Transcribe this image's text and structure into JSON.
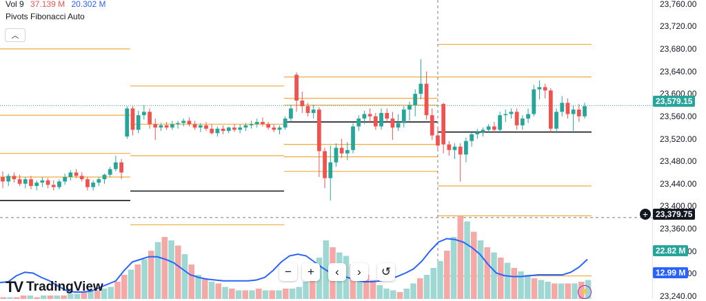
{
  "legend": {
    "vol_label": "Vol 9",
    "vol_value_1": "37.139 M",
    "vol_value_2": "20.302 M",
    "pivots_label": "Pivots Fibonacci Auto"
  },
  "collapse_icon": "chevron-up-icon",
  "price_axis": {
    "ticks": [
      "23,760.00",
      "23,720.00",
      "23,680.00",
      "23,640.00",
      "23,600.00",
      "23,560.00",
      "23,520.00",
      "23,480.00",
      "23,440.00",
      "23,400.00",
      "23,360.00",
      "23,320.00",
      "23,280.00",
      "23,240.00"
    ],
    "last_price_label": "23,579.15",
    "crosshair_price_label": "23,379.75",
    "volume_label": "22.82 M",
    "volume_ma_label": "12.99 M"
  },
  "nav_buttons": [
    {
      "symbol": "−",
      "icon": "zoom-out-icon"
    },
    {
      "symbol": "+",
      "icon": "zoom-in-icon"
    },
    {
      "symbol": "‹",
      "icon": "scroll-left-icon"
    },
    {
      "symbol": "›",
      "icon": "scroll-right-icon"
    },
    {
      "symbol": "↺",
      "icon": "reset-icon"
    }
  ],
  "branding": {
    "logo_mark": "TV",
    "logo_text": "TradingView"
  },
  "colors": {
    "up": "#26a69a",
    "down": "#ef5350",
    "pivot": "#f2a93b",
    "pivot_center": "#131722",
    "vol_ma": "#2962ff",
    "vol_up": "#9fd8d2",
    "vol_down": "#f5a9a7"
  },
  "chart_data": {
    "type": "candlestick",
    "ylim": [
      23235,
      23767
    ],
    "last_price": 23579.15,
    "crosshair_price": 23379.75,
    "grid": false,
    "candles": [
      [
        23452,
        23462,
        23432,
        23444
      ],
      [
        23444,
        23458,
        23436,
        23454
      ],
      [
        23454,
        23460,
        23442,
        23448
      ],
      [
        23448,
        23456,
        23436,
        23440
      ],
      [
        23440,
        23452,
        23432,
        23448
      ],
      [
        23448,
        23454,
        23430,
        23436
      ],
      [
        23436,
        23446,
        23428,
        23442
      ],
      [
        23442,
        23452,
        23434,
        23446
      ],
      [
        23446,
        23450,
        23432,
        23438
      ],
      [
        23438,
        23446,
        23428,
        23434
      ],
      [
        23434,
        23448,
        23430,
        23444
      ],
      [
        23444,
        23458,
        23438,
        23452
      ],
      [
        23452,
        23464,
        23446,
        23460
      ],
      [
        23460,
        23466,
        23450,
        23454
      ],
      [
        23454,
        23460,
        23444,
        23448
      ],
      [
        23448,
        23452,
        23428,
        23434
      ],
      [
        23434,
        23446,
        23428,
        23442
      ],
      [
        23442,
        23452,
        23436,
        23448
      ],
      [
        23448,
        23458,
        23440,
        23456
      ],
      [
        23456,
        23470,
        23452,
        23466
      ],
      [
        23466,
        23490,
        23462,
        23478
      ],
      [
        23478,
        23484,
        23448,
        23460
      ],
      [
        23524,
        23578,
        23520,
        23574
      ],
      [
        23574,
        23578,
        23526,
        23536
      ],
      [
        23536,
        23570,
        23530,
        23562
      ],
      [
        23562,
        23580,
        23554,
        23568
      ],
      [
        23568,
        23574,
        23538,
        23546
      ],
      [
        23546,
        23556,
        23518,
        23540
      ],
      [
        23540,
        23548,
        23534,
        23544
      ],
      [
        23544,
        23550,
        23536,
        23540
      ],
      [
        23540,
        23552,
        23536,
        23546
      ],
      [
        23546,
        23552,
        23538,
        23548
      ],
      [
        23548,
        23556,
        23542,
        23552
      ],
      [
        23552,
        23558,
        23542,
        23546
      ],
      [
        23546,
        23552,
        23536,
        23540
      ],
      [
        23540,
        23548,
        23532,
        23544
      ],
      [
        23544,
        23550,
        23534,
        23538
      ],
      [
        23538,
        23546,
        23528,
        23530
      ],
      [
        23530,
        23542,
        23524,
        23538
      ],
      [
        23538,
        23544,
        23528,
        23534
      ],
      [
        23534,
        23542,
        23530,
        23540
      ],
      [
        23540,
        23546,
        23532,
        23536
      ],
      [
        23536,
        23546,
        23530,
        23540
      ],
      [
        23540,
        23548,
        23534,
        23544
      ],
      [
        23544,
        23552,
        23538,
        23546
      ],
      [
        23546,
        23556,
        23540,
        23550
      ],
      [
        23550,
        23558,
        23542,
        23546
      ],
      [
        23546,
        23550,
        23536,
        23540
      ],
      [
        23540,
        23546,
        23532,
        23536
      ],
      [
        23536,
        23544,
        23528,
        23540
      ],
      [
        23540,
        23560,
        23536,
        23556
      ],
      [
        23556,
        23580,
        23550,
        23574
      ],
      [
        23634,
        23638,
        23568,
        23588
      ],
      [
        23588,
        23604,
        23566,
        23578
      ],
      [
        23578,
        23584,
        23560,
        23566
      ],
      [
        23566,
        23580,
        23556,
        23572
      ],
      [
        23572,
        23576,
        23452,
        23498
      ],
      [
        23498,
        23504,
        23432,
        23450
      ],
      [
        23450,
        23508,
        23410,
        23478
      ],
      [
        23478,
        23512,
        23470,
        23504
      ],
      [
        23504,
        23520,
        23486,
        23494
      ],
      [
        23494,
        23514,
        23482,
        23500
      ],
      [
        23500,
        23548,
        23494,
        23542
      ],
      [
        23542,
        23562,
        23534,
        23556
      ],
      [
        23556,
        23570,
        23546,
        23564
      ],
      [
        23564,
        23574,
        23548,
        23560
      ],
      [
        23560,
        23566,
        23536,
        23542
      ],
      [
        23542,
        23574,
        23536,
        23566
      ],
      [
        23566,
        23574,
        23550,
        23556
      ],
      [
        23556,
        23568,
        23518,
        23540
      ],
      [
        23540,
        23564,
        23534,
        23548
      ],
      [
        23548,
        23578,
        23540,
        23572
      ],
      [
        23572,
        23586,
        23552,
        23580
      ],
      [
        23580,
        23608,
        23560,
        23600
      ],
      [
        23600,
        23662,
        23590,
        23618
      ],
      [
        23618,
        23640,
        23554,
        23562
      ],
      [
        23562,
        23574,
        23518,
        23526
      ],
      [
        23526,
        23542,
        23502,
        23508
      ],
      [
        23582,
        23584,
        23494,
        23510
      ],
      [
        23510,
        23516,
        23490,
        23500
      ],
      [
        23500,
        23512,
        23484,
        23506
      ],
      [
        23506,
        23512,
        23444,
        23492
      ],
      [
        23492,
        23522,
        23478,
        23516
      ],
      [
        23516,
        23532,
        23506,
        23528
      ],
      [
        23528,
        23538,
        23520,
        23532
      ],
      [
        23532,
        23540,
        23524,
        23536
      ],
      [
        23536,
        23546,
        23530,
        23542
      ],
      [
        23542,
        23550,
        23530,
        23536
      ],
      [
        23536,
        23568,
        23530,
        23562
      ],
      [
        23562,
        23572,
        23550,
        23564
      ],
      [
        23564,
        23574,
        23556,
        23568
      ],
      [
        23568,
        23574,
        23536,
        23544
      ],
      [
        23544,
        23562,
        23536,
        23556
      ],
      [
        23556,
        23574,
        23548,
        23564
      ],
      [
        23564,
        23616,
        23560,
        23608
      ],
      [
        23608,
        23624,
        23590,
        23612
      ],
      [
        23612,
        23618,
        23592,
        23606
      ],
      [
        23606,
        23610,
        23532,
        23538
      ],
      [
        23538,
        23574,
        23530,
        23568
      ],
      [
        23568,
        23596,
        23560,
        23584
      ],
      [
        23584,
        23592,
        23556,
        23564
      ],
      [
        23564,
        23580,
        23534,
        23572
      ],
      [
        23572,
        23582,
        23550,
        23560
      ],
      [
        23560,
        23584,
        23556,
        23578
      ]
    ],
    "volume_bars": [
      [
        0,
        1
      ],
      [
        1,
        1
      ],
      [
        0,
        1
      ],
      [
        0,
        2
      ],
      [
        1,
        2
      ],
      [
        0,
        1
      ],
      [
        1,
        2
      ],
      [
        0,
        2
      ],
      [
        1,
        2
      ],
      [
        0,
        2
      ],
      [
        1,
        3
      ],
      [
        1,
        3
      ],
      [
        0,
        4
      ],
      [
        1,
        5
      ],
      [
        0,
        5
      ],
      [
        1,
        6
      ],
      [
        1,
        7
      ],
      [
        0,
        10
      ],
      [
        0,
        14
      ],
      [
        1,
        17
      ],
      [
        0,
        20
      ],
      [
        1,
        23
      ],
      [
        0,
        28
      ],
      [
        1,
        33
      ],
      [
        0,
        36
      ],
      [
        1,
        34
      ],
      [
        0,
        31
      ],
      [
        1,
        26
      ],
      [
        0,
        20
      ],
      [
        1,
        14
      ],
      [
        0,
        12
      ],
      [
        1,
        10
      ],
      [
        0,
        9
      ],
      [
        1,
        7
      ],
      [
        0,
        6
      ],
      [
        1,
        5
      ],
      [
        0,
        5
      ],
      [
        1,
        5
      ],
      [
        0,
        6
      ],
      [
        1,
        5
      ],
      [
        0,
        5
      ],
      [
        1,
        5
      ],
      [
        0,
        6
      ],
      [
        1,
        6
      ],
      [
        1,
        7
      ],
      [
        1,
        10
      ],
      [
        0,
        14
      ],
      [
        1,
        24
      ],
      [
        1,
        34
      ],
      [
        0,
        30
      ],
      [
        1,
        27
      ],
      [
        1,
        25
      ],
      [
        0,
        20
      ],
      [
        1,
        16
      ],
      [
        0,
        14
      ],
      [
        0,
        11
      ],
      [
        1,
        8
      ],
      [
        1,
        6
      ],
      [
        1,
        5
      ],
      [
        0,
        4
      ],
      [
        1,
        6
      ],
      [
        1,
        9
      ],
      [
        0,
        12
      ],
      [
        1,
        14
      ],
      [
        1,
        18
      ],
      [
        1,
        22
      ],
      [
        0,
        28
      ],
      [
        1,
        36
      ],
      [
        0,
        48
      ],
      [
        1,
        45
      ],
      [
        0,
        39
      ],
      [
        1,
        34
      ],
      [
        0,
        30
      ],
      [
        1,
        27
      ],
      [
        0,
        24
      ],
      [
        1,
        21
      ],
      [
        0,
        18
      ],
      [
        1,
        16
      ],
      [
        1,
        14
      ],
      [
        0,
        12
      ],
      [
        1,
        11
      ],
      [
        1,
        10
      ],
      [
        0,
        9
      ],
      [
        1,
        9
      ],
      [
        0,
        9
      ],
      [
        1,
        9
      ],
      [
        0,
        10
      ],
      [
        1,
        11
      ]
    ],
    "volume_ma": [
      [
        0,
        19
      ],
      [
        12,
        20
      ],
      [
        24,
        27
      ],
      [
        36,
        31
      ],
      [
        48,
        30
      ],
      [
        60,
        25
      ],
      [
        72,
        21
      ],
      [
        84,
        15
      ],
      [
        96,
        10
      ],
      [
        108,
        8
      ],
      [
        120,
        8
      ],
      [
        132,
        9
      ],
      [
        144,
        13
      ],
      [
        156,
        17
      ],
      [
        168,
        21
      ],
      [
        180,
        33
      ],
      [
        192,
        43
      ],
      [
        204,
        46
      ],
      [
        216,
        49
      ],
      [
        228,
        49
      ],
      [
        240,
        46
      ],
      [
        252,
        42
      ],
      [
        264,
        35
      ],
      [
        276,
        28
      ],
      [
        288,
        25
      ],
      [
        300,
        23
      ],
      [
        312,
        22
      ],
      [
        324,
        21
      ],
      [
        336,
        21
      ],
      [
        348,
        21
      ],
      [
        360,
        21
      ],
      [
        372,
        22
      ],
      [
        384,
        25
      ],
      [
        396,
        33
      ],
      [
        408,
        43
      ],
      [
        420,
        50
      ],
      [
        432,
        52
      ],
      [
        444,
        50
      ],
      [
        456,
        43
      ],
      [
        468,
        36
      ],
      [
        480,
        30
      ],
      [
        492,
        27
      ],
      [
        504,
        25
      ],
      [
        516,
        22
      ],
      [
        528,
        20
      ],
      [
        540,
        20
      ],
      [
        552,
        21
      ],
      [
        564,
        23
      ],
      [
        576,
        26
      ],
      [
        588,
        30
      ],
      [
        600,
        35
      ],
      [
        612,
        44
      ],
      [
        624,
        56
      ],
      [
        636,
        66
      ],
      [
        648,
        70
      ],
      [
        660,
        69
      ],
      [
        672,
        66
      ],
      [
        684,
        60
      ],
      [
        696,
        52
      ],
      [
        708,
        40
      ],
      [
        720,
        30
      ],
      [
        732,
        27
      ],
      [
        744,
        26
      ],
      [
        756,
        26
      ],
      [
        768,
        27
      ],
      [
        780,
        28
      ],
      [
        792,
        28
      ],
      [
        804,
        28
      ],
      [
        816,
        28
      ],
      [
        828,
        31
      ],
      [
        840,
        37
      ],
      [
        852,
        46
      ]
    ]
  }
}
